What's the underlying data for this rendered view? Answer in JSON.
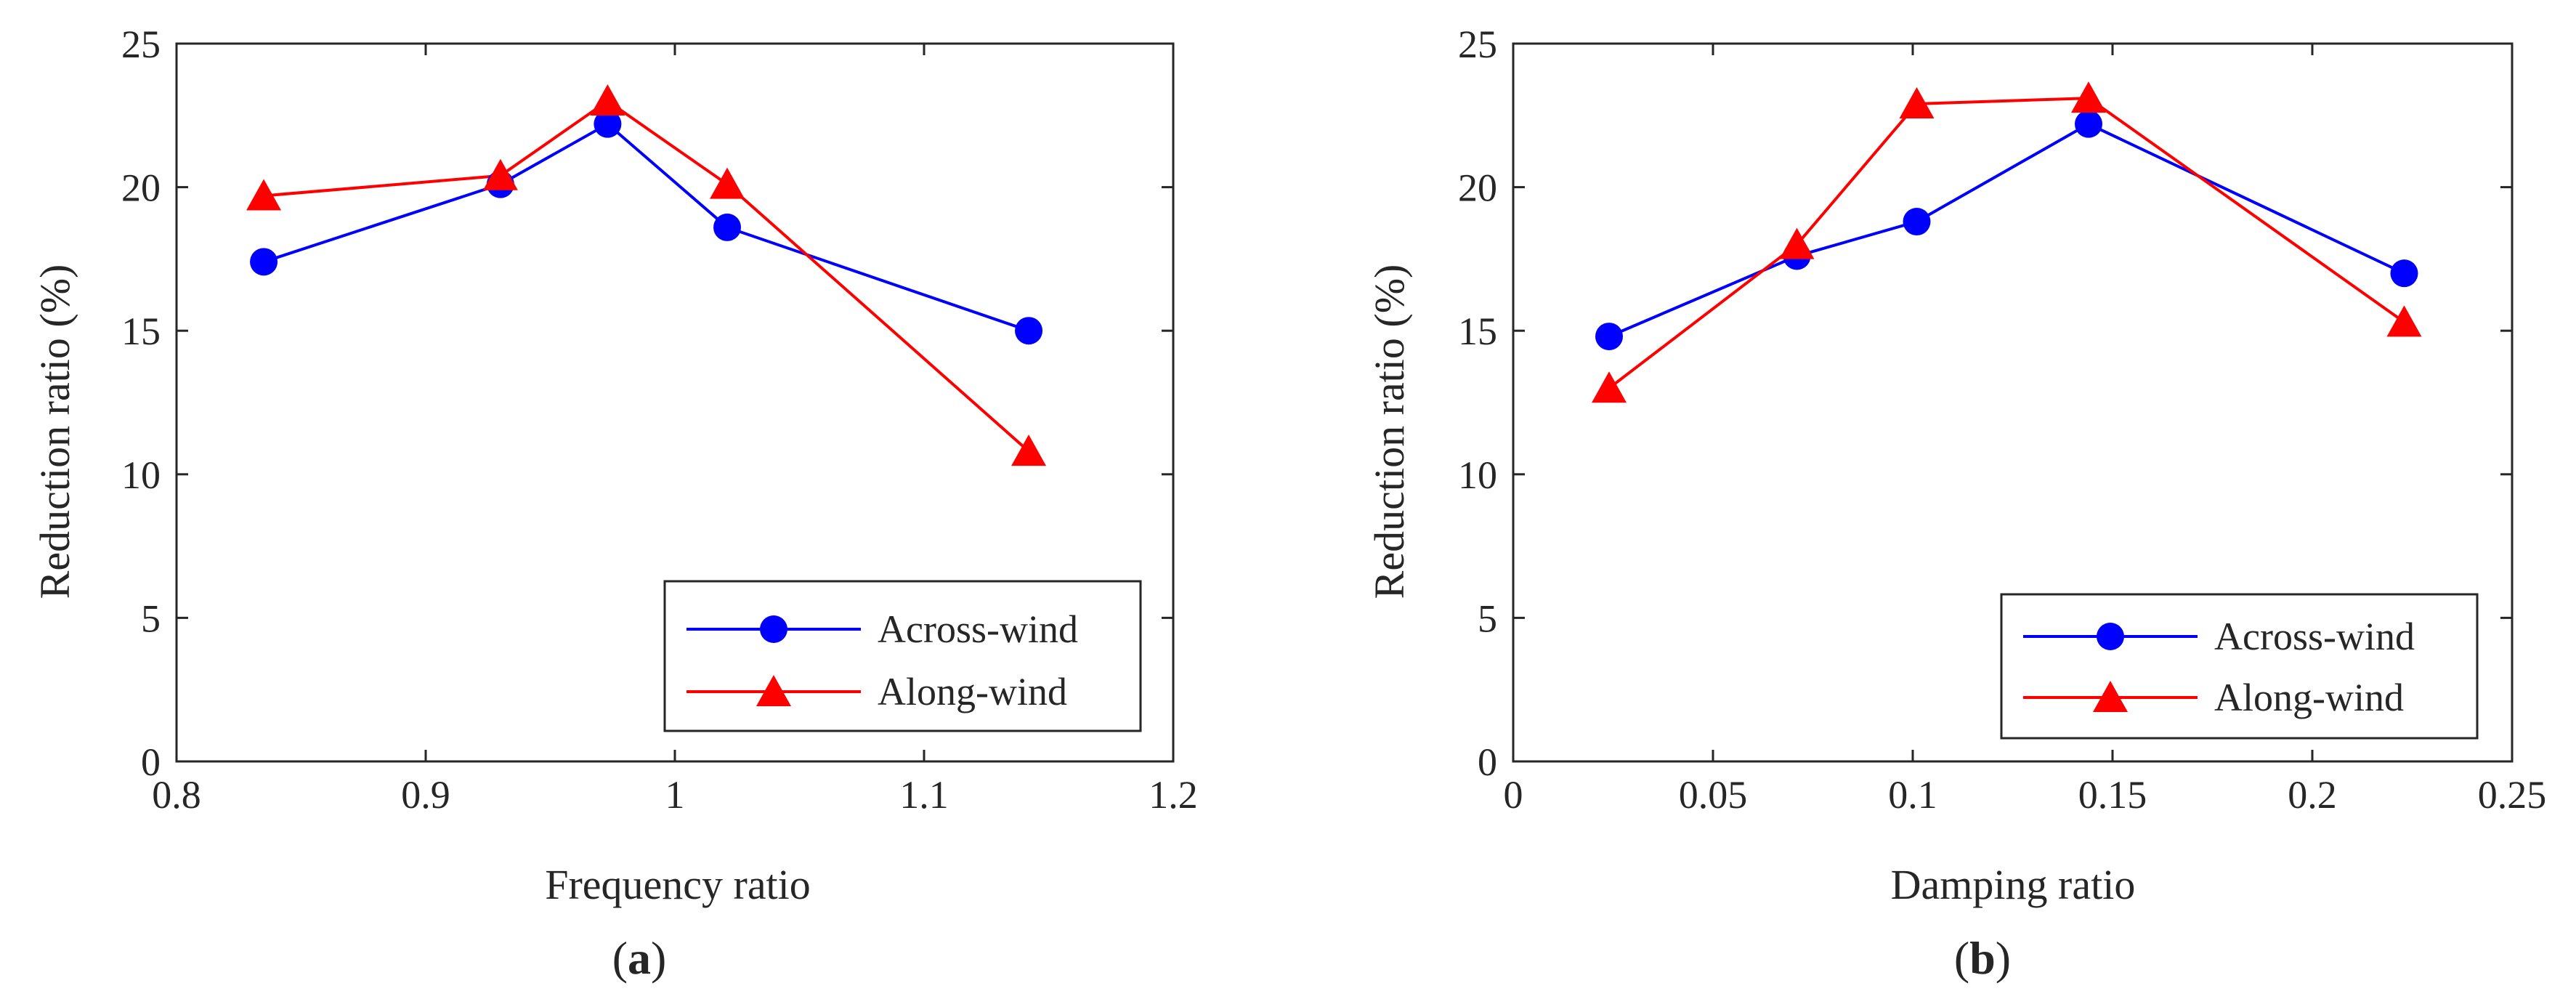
{
  "colors": {
    "across": "#0000ff",
    "along": "#ff0000",
    "axis": "#262626"
  },
  "chart_data": [
    {
      "type": "line",
      "panel_label": {
        "open": "(",
        "letter": "a",
        "close": ")"
      },
      "xlabel": "Frequency ratio",
      "ylabel": "Reduction ratio (%)",
      "xlim": [
        0.8,
        1.2
      ],
      "ylim": [
        0,
        25
      ],
      "xticks": [
        0.8,
        0.9,
        1.0,
        1.1,
        1.2
      ],
      "xtick_labels": [
        "0.8",
        "0.9",
        "1",
        "1.1",
        "1.2"
      ],
      "yticks": [
        0,
        5,
        10,
        15,
        20,
        25
      ],
      "ytick_labels": [
        "0",
        "5",
        "10",
        "15",
        "20",
        "25"
      ],
      "grid": false,
      "legend_position": "bottom-right",
      "series": [
        {
          "name": "Across-wind",
          "marker": "circle",
          "color_key": "across",
          "x": [
            0.835,
            0.93,
            0.973,
            1.021,
            1.142
          ],
          "y": [
            17.4,
            20.1,
            22.2,
            18.6,
            15.0
          ]
        },
        {
          "name": "Along-wind",
          "marker": "triangle",
          "color_key": "along",
          "x": [
            0.835,
            0.93,
            0.973,
            1.021,
            1.142
          ],
          "y": [
            19.7,
            20.4,
            23.0,
            20.1,
            10.8
          ]
        }
      ]
    },
    {
      "type": "line",
      "panel_label": {
        "open": "(",
        "letter": "b",
        "close": ")"
      },
      "xlabel": "Damping ratio",
      "ylabel": "Reduction ratio (%)",
      "xlim": [
        0,
        0.25
      ],
      "ylim": [
        0,
        25
      ],
      "xticks": [
        0,
        0.05,
        0.1,
        0.15,
        0.2,
        0.25
      ],
      "xtick_labels": [
        "0",
        "0.05",
        "0.1",
        "0.15",
        "0.2",
        "0.25"
      ],
      "yticks": [
        0,
        5,
        10,
        15,
        20,
        25
      ],
      "ytick_labels": [
        "0",
        "5",
        "10",
        "15",
        "20",
        "25"
      ],
      "grid": false,
      "legend_position": "bottom-right",
      "series": [
        {
          "name": "Across-wind",
          "marker": "circle",
          "color_key": "across",
          "x": [
            0.024,
            0.071,
            0.101,
            0.144,
            0.223
          ],
          "y": [
            14.8,
            17.6,
            18.8,
            22.2,
            17.0
          ]
        },
        {
          "name": "Along-wind",
          "marker": "triangle",
          "color_key": "along",
          "x": [
            0.024,
            0.071,
            0.101,
            0.144,
            0.223
          ],
          "y": [
            13.0,
            18.0,
            22.9,
            23.1,
            15.3
          ]
        }
      ]
    }
  ]
}
